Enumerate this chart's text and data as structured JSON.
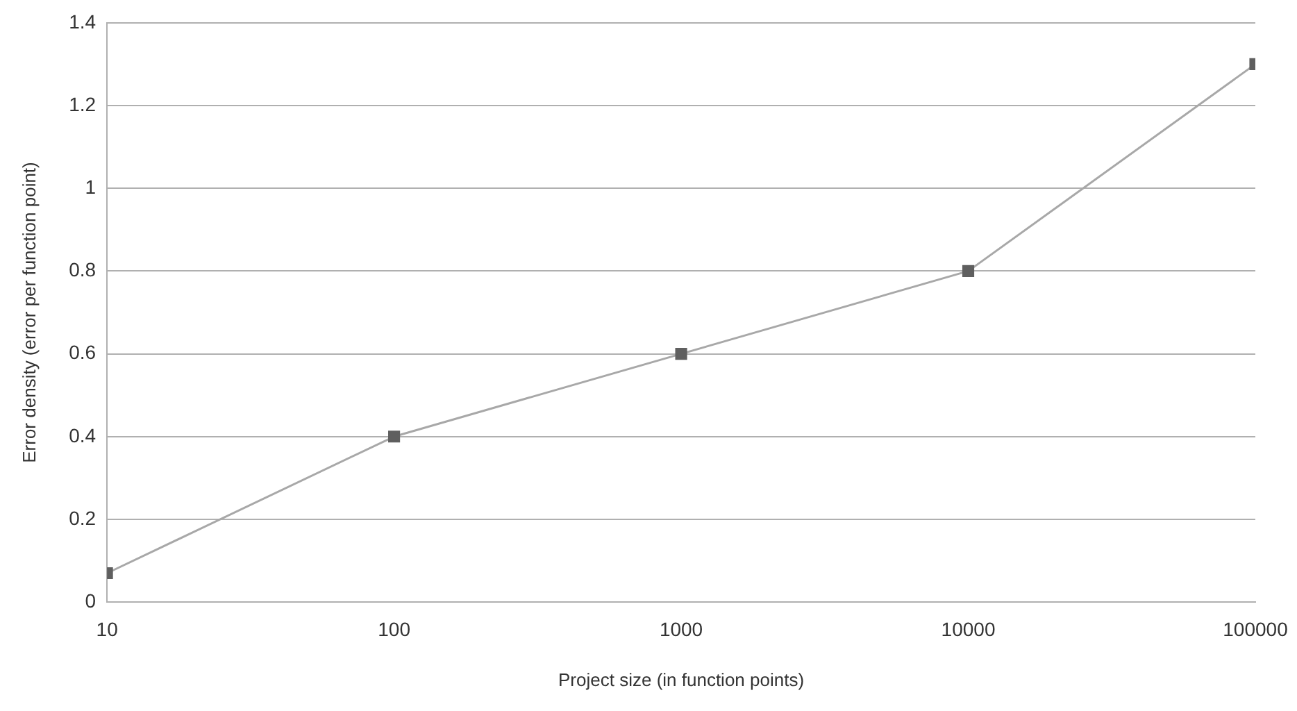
{
  "chart_data": {
    "type": "line",
    "xlabel": "Project size (in function points)",
    "ylabel": "Error density (error per function point)",
    "x": [
      10,
      100,
      1000,
      10000,
      100000
    ],
    "series": [
      {
        "color": "#5f5f5f",
        "values": [
          0.07,
          0.4,
          0.6,
          0.8,
          1.3
        ]
      }
    ],
    "log": "x",
    "xlim": [
      10,
      100000
    ],
    "xticks": [
      10,
      100,
      1000,
      10000,
      100000
    ],
    "ylim": [
      0,
      1.4
    ],
    "yticks": [
      0,
      0.2,
      0.4,
      0.6,
      0.8,
      1,
      1.2,
      1.4
    ],
    "grid": "y",
    "legend": false,
    "marker": "square",
    "line_style": "solid"
  }
}
